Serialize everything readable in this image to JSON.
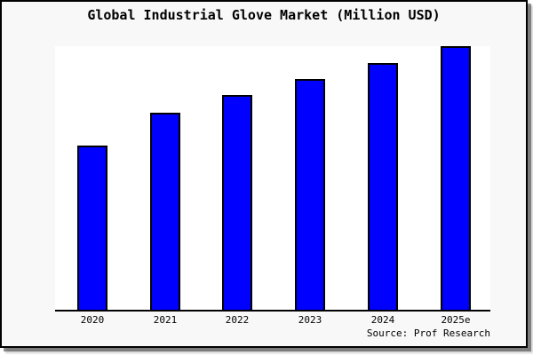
{
  "frame": {
    "background_color": "#f8f8f8",
    "border_color": "#000000",
    "plot_background_color": "#ffffff"
  },
  "chart_data": {
    "type": "bar",
    "title": "Global Industrial Glove Market (Million USD)",
    "categories": [
      "2020",
      "2021",
      "2022",
      "2023",
      "2024",
      "2025e"
    ],
    "values": [
      187,
      224,
      244,
      262,
      280,
      299
    ],
    "values_note": "No y-axis scale, gridlines or data labels are shown in the chart; values are relative bar heights in screenshot pixels (baseline y=349).",
    "xlabel": "",
    "ylabel": "",
    "legend": "none",
    "grid": false,
    "y_axis_ticks": "none",
    "bar_color": "#0000ff",
    "bar_border_color": "#000000",
    "source": "Source: Prof Research"
  }
}
